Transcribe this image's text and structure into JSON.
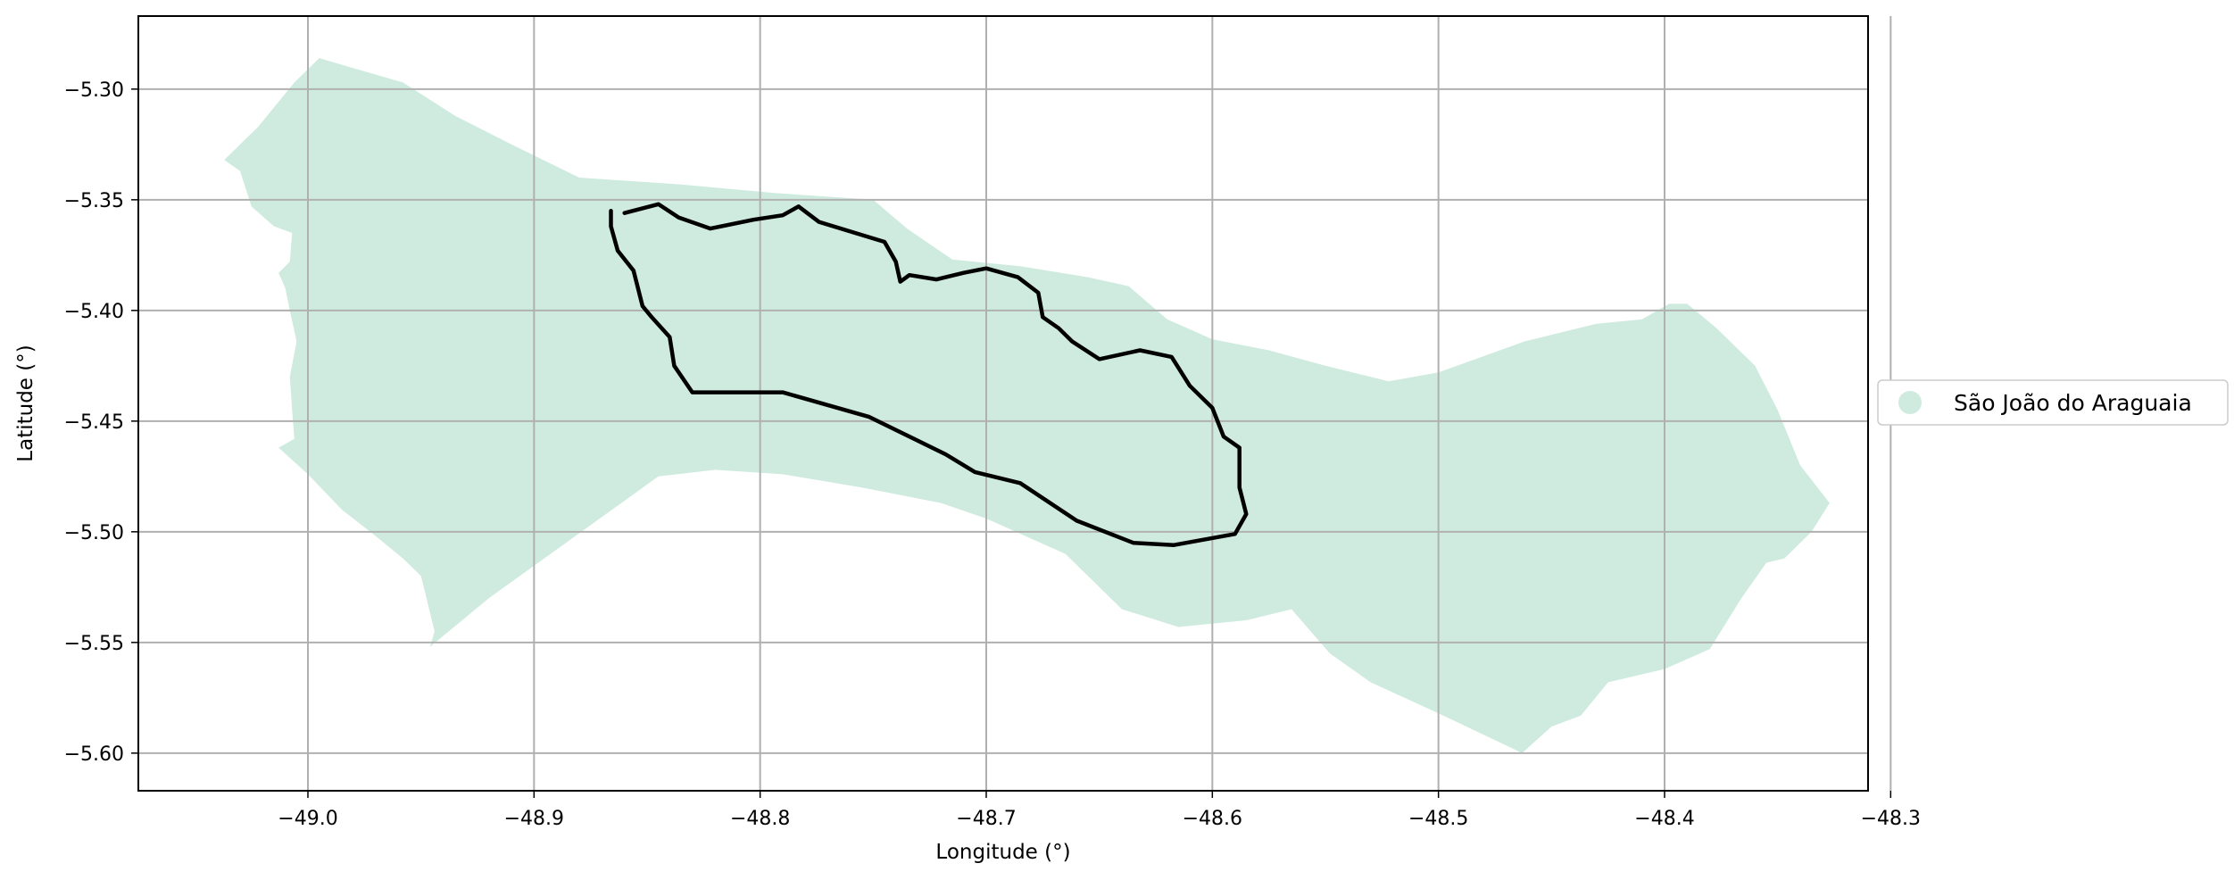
{
  "chart_data": {
    "type": "map",
    "xlabel": "Longitude (°)",
    "ylabel": "Latitude (°)",
    "xlim": [
      -49.075,
      -48.31
    ],
    "ylim": [
      -5.617,
      -5.267
    ],
    "xticks": [
      -49.0,
      -48.9,
      -48.8,
      -48.7,
      -48.6,
      -48.5,
      -48.4,
      -48.3
    ],
    "xtick_labels": [
      "−49.0",
      "−48.9",
      "−48.8",
      "−48.7",
      "−48.6",
      "−48.5",
      "−48.4",
      "−48.3"
    ],
    "yticks": [
      -5.3,
      -5.35,
      -5.4,
      -5.45,
      -5.5,
      -5.55,
      -5.6
    ],
    "ytick_labels": [
      "−5.30",
      "−5.35",
      "−5.40",
      "−5.45",
      "−5.50",
      "−5.55",
      "−5.60"
    ],
    "grid": true,
    "legend": {
      "placement": "right",
      "entries": [
        {
          "label": "São João do Araguaia",
          "color": "#cfebdf",
          "marker": "circle"
        }
      ]
    },
    "colors": {
      "region_fill": "#cfebdf",
      "route": "#000000",
      "grid": "#b0b0b0"
    },
    "region": {
      "name": "São João do Araguaia",
      "polygon": [
        [
          -49.037,
          -5.332
        ],
        [
          -49.03,
          -5.337
        ],
        [
          -49.025,
          -5.353
        ],
        [
          -49.015,
          -5.362
        ],
        [
          -49.007,
          -5.365
        ],
        [
          -49.008,
          -5.378
        ],
        [
          -49.013,
          -5.383
        ],
        [
          -49.01,
          -5.39
        ],
        [
          -49.008,
          -5.4
        ],
        [
          -49.005,
          -5.414
        ],
        [
          -49.008,
          -5.43
        ],
        [
          -49.007,
          -5.445
        ],
        [
          -49.006,
          -5.458
        ],
        [
          -49.013,
          -5.462
        ],
        [
          -49.0,
          -5.474
        ],
        [
          -48.985,
          -5.49
        ],
        [
          -48.97,
          -5.502
        ],
        [
          -48.958,
          -5.512
        ],
        [
          -48.95,
          -5.52
        ],
        [
          -48.944,
          -5.545
        ],
        [
          -48.946,
          -5.552
        ],
        [
          -48.92,
          -5.53
        ],
        [
          -48.875,
          -5.497
        ],
        [
          -48.845,
          -5.475
        ],
        [
          -48.82,
          -5.472
        ],
        [
          -48.79,
          -5.474
        ],
        [
          -48.755,
          -5.48
        ],
        [
          -48.72,
          -5.487
        ],
        [
          -48.7,
          -5.494
        ],
        [
          -48.665,
          -5.51
        ],
        [
          -48.64,
          -5.535
        ],
        [
          -48.615,
          -5.543
        ],
        [
          -48.585,
          -5.54
        ],
        [
          -48.565,
          -5.535
        ],
        [
          -48.548,
          -5.555
        ],
        [
          -48.53,
          -5.568
        ],
        [
          -48.5,
          -5.582
        ],
        [
          -48.463,
          -5.6
        ],
        [
          -48.45,
          -5.588
        ],
        [
          -48.437,
          -5.583
        ],
        [
          -48.425,
          -5.568
        ],
        [
          -48.4,
          -5.562
        ],
        [
          -48.38,
          -5.553
        ],
        [
          -48.366,
          -5.53
        ],
        [
          -48.355,
          -5.514
        ],
        [
          -48.347,
          -5.512
        ],
        [
          -48.335,
          -5.5
        ],
        [
          -48.327,
          -5.487
        ],
        [
          -48.34,
          -5.47
        ],
        [
          -48.35,
          -5.445
        ],
        [
          -48.36,
          -5.425
        ],
        [
          -48.377,
          -5.408
        ],
        [
          -48.39,
          -5.397
        ],
        [
          -48.398,
          -5.397
        ],
        [
          -48.41,
          -5.404
        ],
        [
          -48.43,
          -5.406
        ],
        [
          -48.462,
          -5.414
        ],
        [
          -48.5,
          -5.428
        ],
        [
          -48.522,
          -5.432
        ],
        [
          -48.55,
          -5.425
        ],
        [
          -48.575,
          -5.418
        ],
        [
          -48.6,
          -5.413
        ],
        [
          -48.62,
          -5.404
        ],
        [
          -48.637,
          -5.389
        ],
        [
          -48.655,
          -5.385
        ],
        [
          -48.685,
          -5.38
        ],
        [
          -48.715,
          -5.377
        ],
        [
          -48.735,
          -5.363
        ],
        [
          -48.75,
          -5.35
        ],
        [
          -48.793,
          -5.347
        ],
        [
          -48.836,
          -5.343
        ],
        [
          -48.88,
          -5.34
        ],
        [
          -48.91,
          -5.325
        ],
        [
          -48.935,
          -5.312
        ],
        [
          -48.958,
          -5.297
        ],
        [
          -48.985,
          -5.289
        ],
        [
          -48.995,
          -5.286
        ],
        [
          -49.006,
          -5.297
        ],
        [
          -49.022,
          -5.317
        ]
      ]
    },
    "route": {
      "points": [
        [
          -48.86,
          -5.356
        ],
        [
          -48.845,
          -5.352
        ],
        [
          -48.836,
          -5.358
        ],
        [
          -48.822,
          -5.363
        ],
        [
          -48.803,
          -5.359
        ],
        [
          -48.79,
          -5.357
        ],
        [
          -48.783,
          -5.353
        ],
        [
          -48.774,
          -5.36
        ],
        [
          -48.758,
          -5.365
        ],
        [
          -48.745,
          -5.369
        ],
        [
          -48.74,
          -5.378
        ],
        [
          -48.738,
          -5.387
        ],
        [
          -48.734,
          -5.384
        ],
        [
          -48.722,
          -5.386
        ],
        [
          -48.71,
          -5.383
        ],
        [
          -48.7,
          -5.381
        ],
        [
          -48.686,
          -5.385
        ],
        [
          -48.677,
          -5.392
        ],
        [
          -48.675,
          -5.403
        ],
        [
          -48.668,
          -5.408
        ],
        [
          -48.662,
          -5.414
        ],
        [
          -48.65,
          -5.422
        ],
        [
          -48.632,
          -5.418
        ],
        [
          -48.618,
          -5.421
        ],
        [
          -48.61,
          -5.434
        ],
        [
          -48.6,
          -5.444
        ],
        [
          -48.595,
          -5.457
        ],
        [
          -48.588,
          -5.462
        ],
        [
          -48.588,
          -5.48
        ],
        [
          -48.585,
          -5.492
        ],
        [
          -48.59,
          -5.501
        ],
        [
          -48.617,
          -5.506
        ],
        [
          -48.635,
          -5.505
        ],
        [
          -48.66,
          -5.495
        ],
        [
          -48.685,
          -5.478
        ],
        [
          -48.705,
          -5.473
        ],
        [
          -48.718,
          -5.465
        ],
        [
          -48.752,
          -5.448
        ],
        [
          -48.79,
          -5.437
        ],
        [
          -48.83,
          -5.437
        ],
        [
          -48.838,
          -5.425
        ],
        [
          -48.84,
          -5.412
        ],
        [
          -48.848,
          -5.403
        ],
        [
          -48.852,
          -5.398
        ],
        [
          -48.856,
          -5.382
        ],
        [
          -48.863,
          -5.373
        ],
        [
          -48.866,
          -5.362
        ],
        [
          -48.866,
          -5.355
        ]
      ]
    }
  }
}
